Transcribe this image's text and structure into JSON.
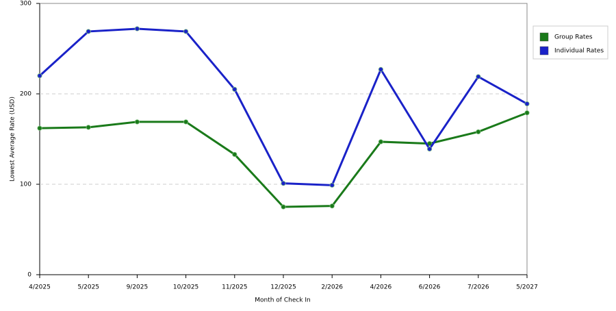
{
  "chart_data": {
    "type": "line",
    "x_label": "Month of Check In",
    "y_label": "Lowest Average Rate (USD)",
    "categories": [
      "4/2025",
      "5/2025",
      "9/2025",
      "10/2025",
      "11/2025",
      "12/2025",
      "2/2026",
      "4/2026",
      "6/2026",
      "7/2026",
      "5/2027"
    ],
    "series": [
      {
        "name": "Group Rates",
        "color": "#1a7a1a",
        "values": [
          162,
          163,
          169,
          169,
          133,
          75,
          76,
          147,
          145,
          158,
          179
        ]
      },
      {
        "name": "Individual Rates",
        "color": "#1a22c8",
        "values": [
          220,
          269,
          272,
          269,
          205,
          101,
          99,
          227,
          139,
          219,
          189
        ]
      }
    ],
    "ylim": [
      0,
      300
    ],
    "yticks": [
      0,
      100,
      200,
      300
    ],
    "grid": true,
    "legend": "right"
  }
}
